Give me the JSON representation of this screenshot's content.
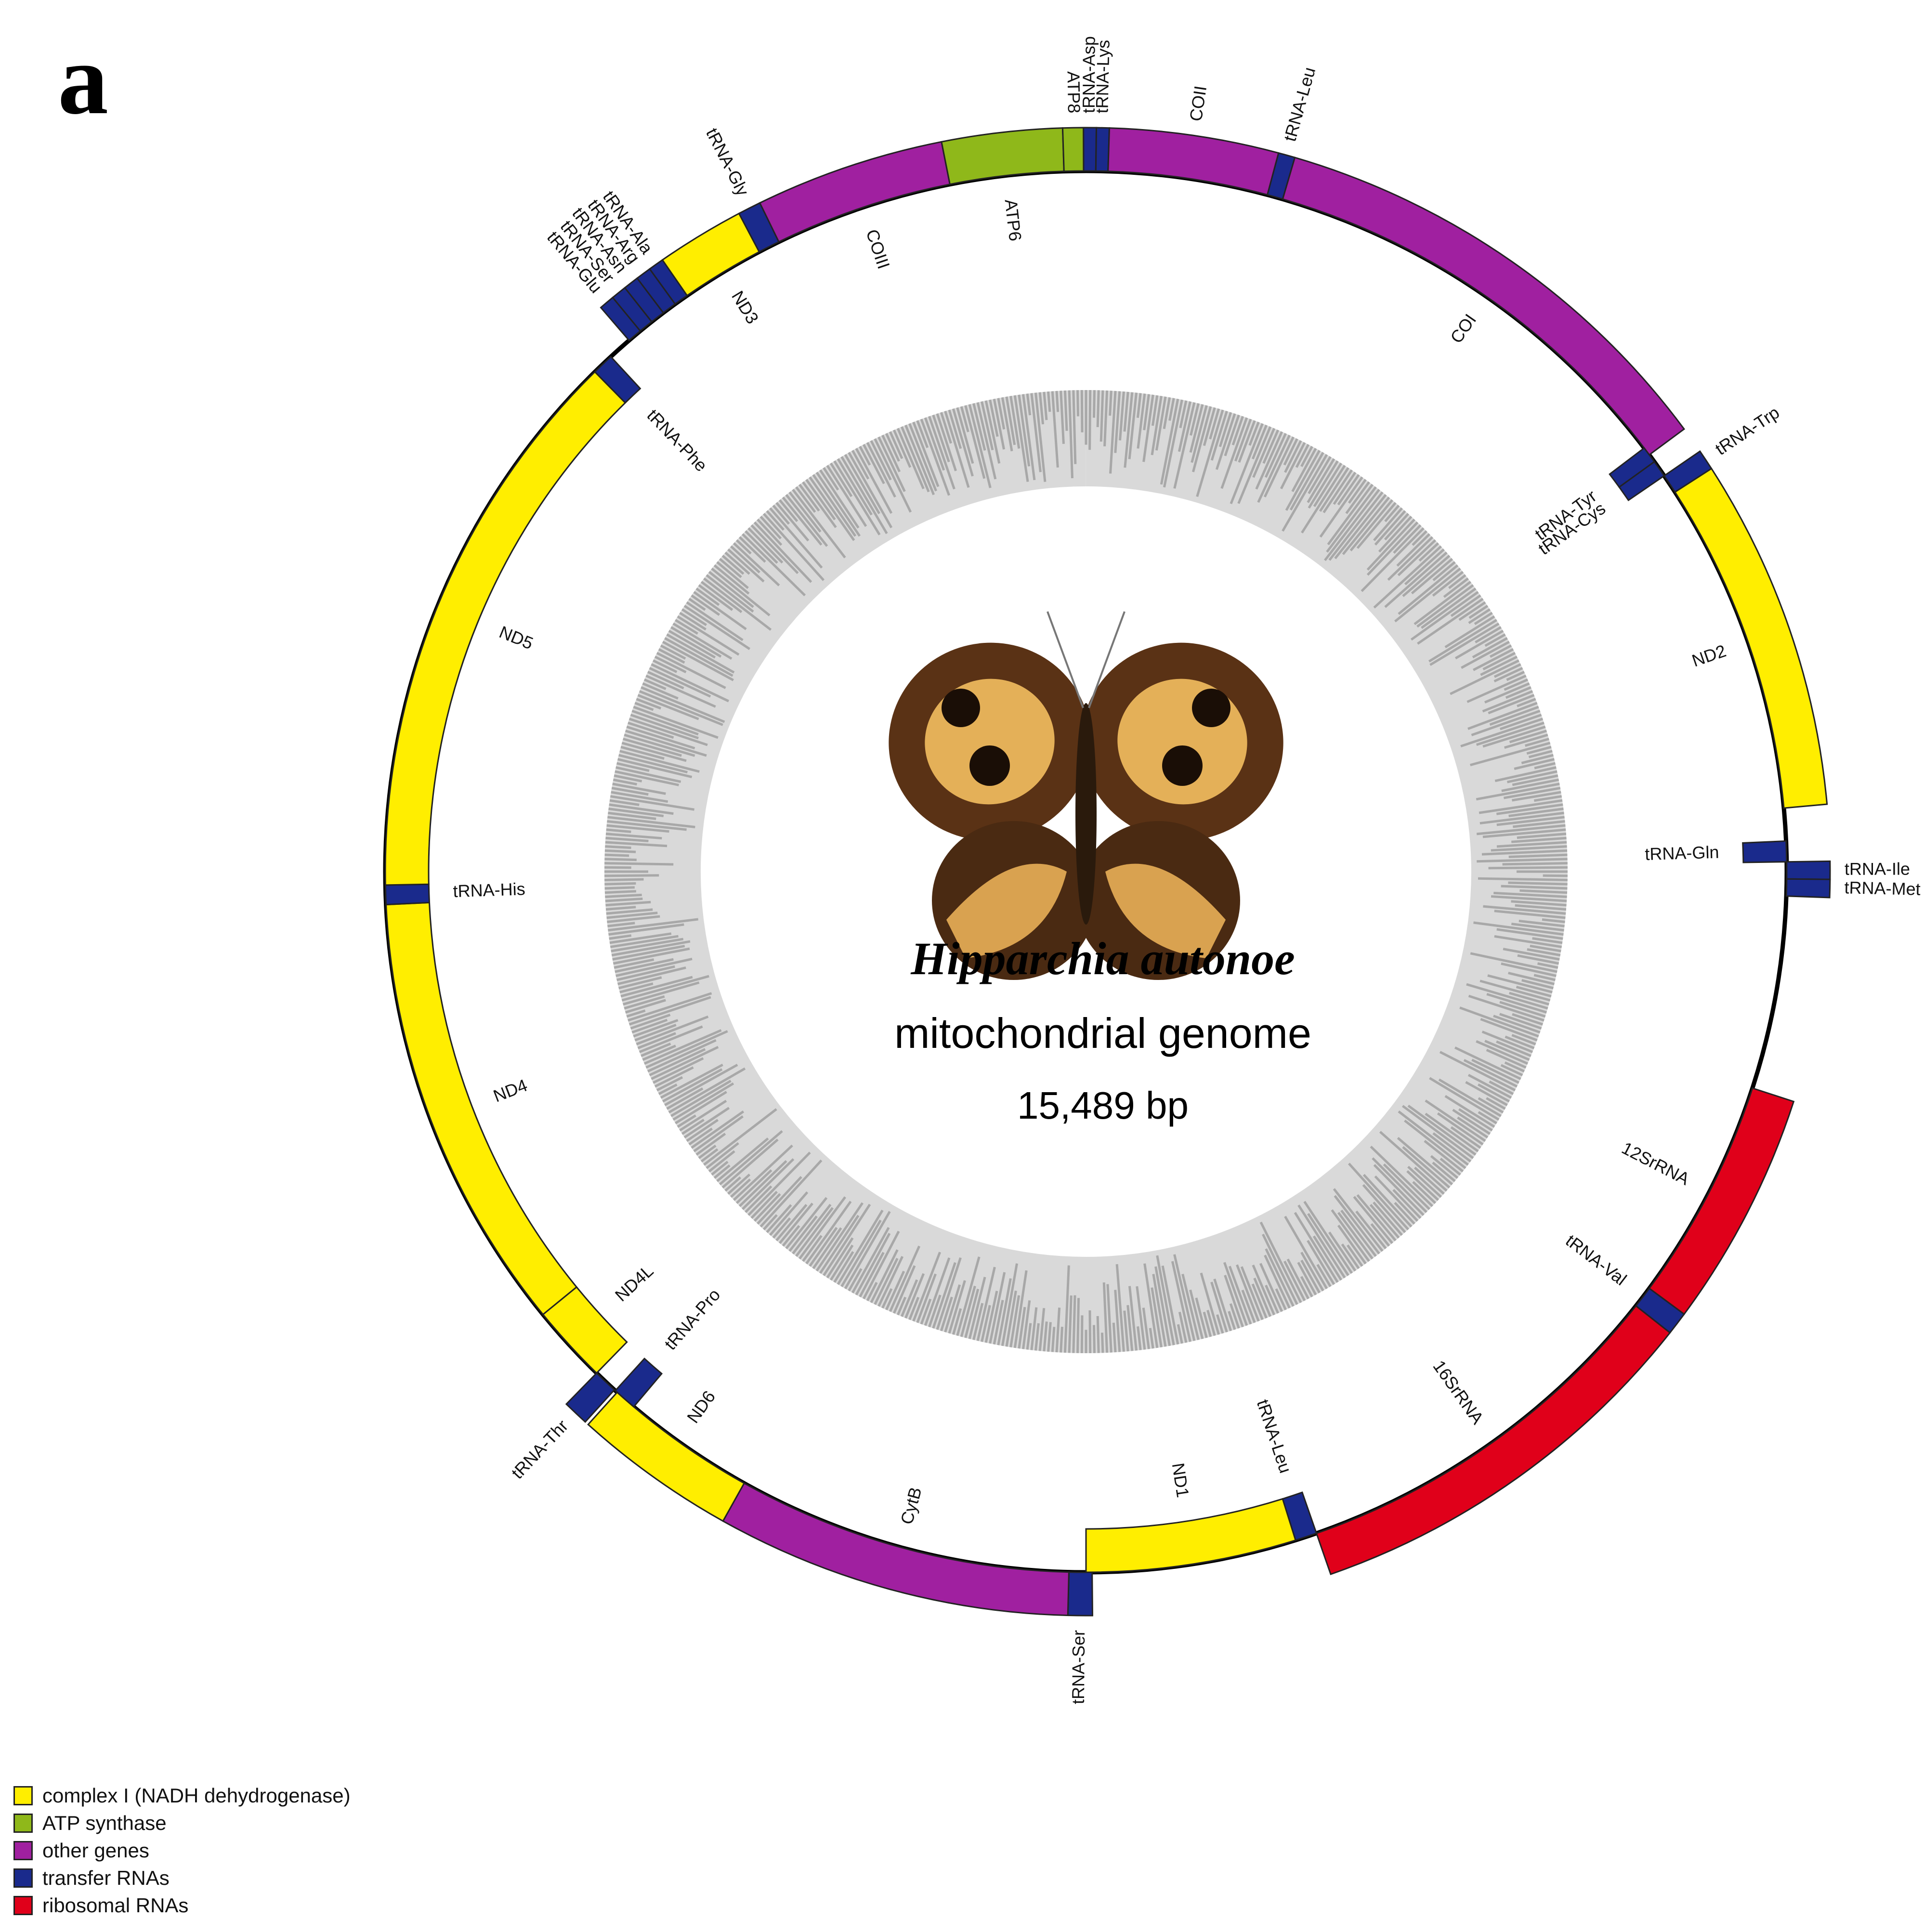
{
  "panel_letter": "a",
  "center": {
    "species": "Hipparchia autonoe",
    "subtitle": "mitochondrial genome",
    "size": "15,489 bp"
  },
  "image": {
    "icon": "butterfly-icon",
    "description_visible": false
  },
  "categories": {
    "complex1": {
      "label": "complex I (NADH dehydrogenase)",
      "color": "#ffee00"
    },
    "atp": {
      "label": "ATP synthase",
      "color": "#8fb81a"
    },
    "other": {
      "label": "other genes",
      "color": "#a020a0"
    },
    "trna": {
      "label": "transfer RNAs",
      "color": "#1a2a8c"
    },
    "rrna": {
      "label": "ribosomal RNAs",
      "color": "#e0001a"
    }
  },
  "legend": [
    "complex1",
    "atp",
    "other",
    "trna",
    "rrna"
  ],
  "genome_length_bp": 15489,
  "genes": [
    {
      "name": "tRNA-Asp",
      "cat": "trna",
      "start": -0.2,
      "end": 0.8,
      "strand": "outer",
      "label_outside": true
    },
    {
      "name": "tRNA-Lys",
      "cat": "trna",
      "start": 0.8,
      "end": 1.8,
      "strand": "outer",
      "label_outside": true
    },
    {
      "name": "COII",
      "cat": "other",
      "start": 1.8,
      "end": 15.0,
      "strand": "outer",
      "label_outside": true
    },
    {
      "name": "tRNA-Leu",
      "cat": "trna",
      "start": 15.0,
      "end": 16.3,
      "strand": "outer",
      "label_outside": true
    },
    {
      "name": "COI",
      "cat": "other",
      "start": 16.3,
      "end": 53.5,
      "strand": "outer",
      "label_outside": false
    },
    {
      "name": "tRNA-Tyr",
      "cat": "trna",
      "start": 52.8,
      "end": 54.2,
      "strand": "inner",
      "label_outside": false
    },
    {
      "name": "tRNA-Cys",
      "cat": "trna",
      "start": 54.2,
      "end": 55.6,
      "strand": "inner",
      "label_outside": false
    },
    {
      "name": "tRNA-Trp",
      "cat": "trna",
      "start": 55.6,
      "end": 57.2,
      "strand": "outer",
      "label_outside": true
    },
    {
      "name": "ND2",
      "cat": "complex1",
      "start": 57.2,
      "end": 84.8,
      "strand": "outer",
      "label_outside": false
    },
    {
      "name": "tRNA-Gln",
      "cat": "trna",
      "start": 87.5,
      "end": 89.2,
      "strand": "inner",
      "label_outside": false
    },
    {
      "name": "tRNA-Ile",
      "cat": "trna",
      "start": 89.2,
      "end": 90.6,
      "strand": "outer",
      "label_outside": true
    },
    {
      "name": "tRNA-Met",
      "cat": "trna",
      "start": 90.6,
      "end": 92.0,
      "strand": "outer",
      "label_outside": true
    },
    {
      "name": "12SrRNA",
      "cat": "rrna",
      "start": 108.0,
      "end": 126.5,
      "strand": "outer",
      "label_outside": false
    },
    {
      "name": "tRNA-Val",
      "cat": "trna",
      "start": 126.5,
      "end": 128.3,
      "strand": "outer",
      "label_outside": false
    },
    {
      "name": "16SrRNA",
      "cat": "rrna",
      "start": 128.3,
      "end": 160.8,
      "strand": "outer",
      "label_outside": false
    },
    {
      "name": "tRNA-Leu",
      "cat": "trna",
      "start": 160.8,
      "end": 162.6,
      "strand": "inner",
      "label_outside": false
    },
    {
      "name": "ND1",
      "cat": "complex1",
      "start": 162.6,
      "end": 180.0,
      "strand": "inner",
      "label_outside": false
    },
    {
      "name": "tRNA-Ser",
      "cat": "trna",
      "start": 179.5,
      "end": 181.4,
      "strand": "outer",
      "label_outside": true
    },
    {
      "name": "CytB",
      "cat": "other",
      "start": 181.4,
      "end": 209.2,
      "strand": "outer",
      "label_outside": false
    },
    {
      "name": "ND6",
      "cat": "complex1",
      "start": 209.2,
      "end": 222.0,
      "strand": "outer",
      "label_outside": false
    },
    {
      "name": "tRNA-Thr",
      "cat": "trna",
      "start": 222.3,
      "end": 224.3,
      "strand": "outer",
      "label_outside": true
    },
    {
      "name": "tRNA-Pro",
      "cat": "trna",
      "start": 220.2,
      "end": 222.2,
      "strand": "inner",
      "label_outside": false
    },
    {
      "name": "ND4L",
      "cat": "complex1",
      "start": 224.3,
      "end": 230.8,
      "strand": "inner",
      "label_outside": false
    },
    {
      "name": "ND4",
      "cat": "complex1",
      "start": 230.8,
      "end": 267.3,
      "strand": "inner",
      "label_outside": false
    },
    {
      "name": "tRNA-His",
      "cat": "trna",
      "start": 267.3,
      "end": 268.9,
      "strand": "inner",
      "label_outside": false
    },
    {
      "name": "ND5",
      "cat": "complex1",
      "start": 268.9,
      "end": 315.5,
      "strand": "inner",
      "label_outside": false
    },
    {
      "name": "tRNA-Phe",
      "cat": "trna",
      "start": 315.5,
      "end": 317.3,
      "strand": "inner",
      "label_outside": false
    },
    {
      "name": "tRNA-Glu",
      "cat": "trna",
      "start": 319.3,
      "end": 320.5,
      "strand": "outer",
      "label_outside": true
    },
    {
      "name": "tRNA-Ser",
      "cat": "trna",
      "start": 320.5,
      "end": 321.7,
      "strand": "outer",
      "label_outside": true
    },
    {
      "name": "tRNA-Asn",
      "cat": "trna",
      "start": 321.7,
      "end": 322.9,
      "strand": "outer",
      "label_outside": true
    },
    {
      "name": "tRNA-Arg",
      "cat": "trna",
      "start": 322.9,
      "end": 324.1,
      "strand": "outer",
      "label_outside": true
    },
    {
      "name": "tRNA-Ala",
      "cat": "trna",
      "start": 324.1,
      "end": 325.3,
      "strand": "outer",
      "label_outside": true
    },
    {
      "name": "ND3",
      "cat": "complex1",
      "start": 325.3,
      "end": 332.2,
      "strand": "outer",
      "label_outside": false
    },
    {
      "name": "tRNA-Gly",
      "cat": "trna",
      "start": 332.2,
      "end": 334.0,
      "strand": "outer",
      "label_outside": true
    },
    {
      "name": "COIII",
      "cat": "other",
      "start": 334.0,
      "end": 348.8,
      "strand": "outer",
      "label_outside": false
    },
    {
      "name": "ATP6",
      "cat": "atp",
      "start": 348.8,
      "end": 358.2,
      "strand": "outer",
      "label_outside": false
    },
    {
      "name": "ATP8",
      "cat": "atp",
      "start": 358.2,
      "end": 359.8,
      "strand": "outer",
      "label_outside": true
    }
  ]
}
